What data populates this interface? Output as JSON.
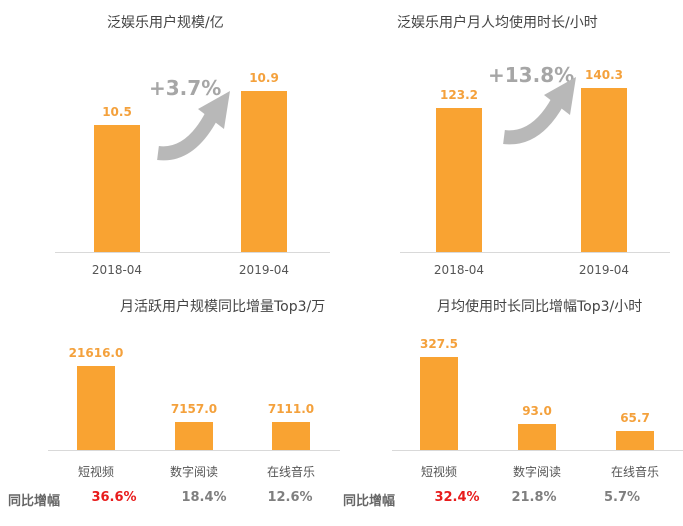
{
  "chart_data": [
    {
      "type": "bar",
      "title": "泛娱乐用户规模/亿",
      "categories": [
        "2018-04",
        "2019-04"
      ],
      "values": [
        10.5,
        10.9
      ],
      "value_labels": [
        "10.5",
        "10.9"
      ],
      "ylim": [
        9,
        11
      ],
      "annotation": "+3.7%",
      "grid": false,
      "bar_color": "#f9a332"
    },
    {
      "type": "bar",
      "title": "泛娱乐用户月人均使用时长/小时",
      "categories": [
        "2018-04",
        "2019-04"
      ],
      "values": [
        123.2,
        140.3
      ],
      "value_labels": [
        "123.2",
        "140.3"
      ],
      "ylim": [
        0,
        145
      ],
      "annotation": "+13.8%",
      "grid": false,
      "bar_color": "#f9a332"
    },
    {
      "type": "bar",
      "title": "月活跃用户规模同比增量Top3/万",
      "categories": [
        "短视频",
        "数字阅读",
        "在线音乐"
      ],
      "values": [
        21616.0,
        7157.0,
        7111.0
      ],
      "value_labels": [
        "21616.0",
        "7157.0",
        "7111.0"
      ],
      "ylim": [
        0,
        25700
      ],
      "yoy_label": "同比增幅",
      "yoy": [
        "36.6%",
        "18.4%",
        "12.6%"
      ],
      "grid": false,
      "bar_color": "#f9a332",
      "highlight_color": "#e81c1c"
    },
    {
      "type": "bar",
      "title": "月均使用时长同比增幅Top3/小时",
      "categories": [
        "短视频",
        "数字阅读",
        "在线音乐"
      ],
      "values": [
        327.5,
        93.0,
        65.7
      ],
      "value_labels": [
        "327.5",
        "93.0",
        "65.7"
      ],
      "ylim": [
        0,
        352
      ],
      "yoy_label": "同比增幅",
      "yoy": [
        "32.4%",
        "21.8%",
        "5.7%"
      ],
      "grid": false,
      "bar_color": "#f9a332",
      "highlight_color": "#e81c1c"
    }
  ]
}
